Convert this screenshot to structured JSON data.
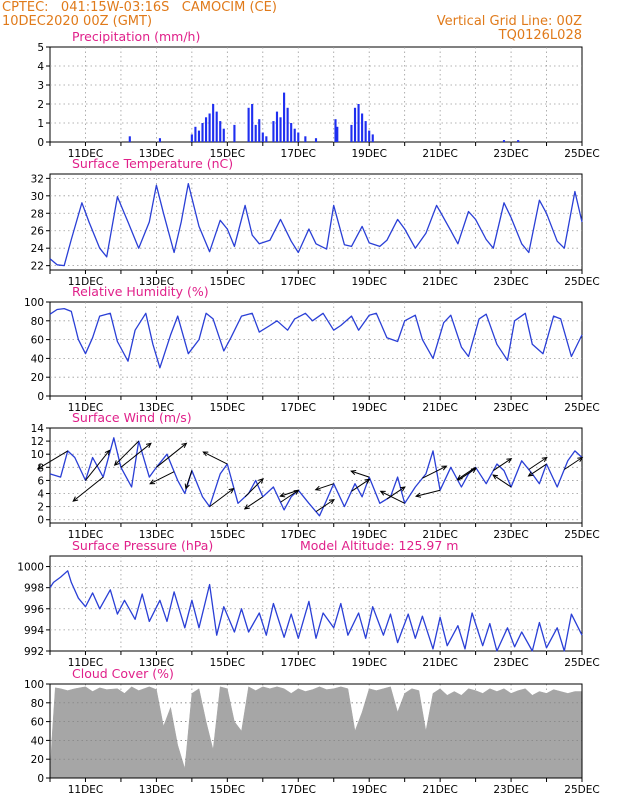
{
  "header": {
    "line1": "CPTEC:   041:15W-03:16S   CAMOCIM (CE)",
    "line2": "10DEC2020 00Z (GMT)",
    "right1": "Vertical Grid Line: 00Z",
    "right2": "TQ0126L028"
  },
  "colors": {
    "header": "#e07a1a",
    "title": "#e0208a",
    "line": "#2a3fd6",
    "bar": "#1f2ff0",
    "cloud": "#a6a6a6"
  },
  "chart_data": [
    {
      "id": "precip",
      "type": "bar",
      "title": "Precipitation (mm/h)",
      "ylim": [
        0,
        5
      ],
      "yticks": [
        0,
        1,
        2,
        3,
        4,
        5
      ],
      "xlim": [
        10,
        25
      ],
      "xticks": [
        11,
        13,
        15,
        17,
        19,
        21,
        23,
        25
      ],
      "xticklabels": [
        "11DEC",
        "13DEC",
        "15DEC",
        "17DEC",
        "19DEC",
        "21DEC",
        "23DEC",
        "25DEC"
      ],
      "x": [
        12.25,
        13.1,
        14.0,
        14.1,
        14.2,
        14.3,
        14.4,
        14.5,
        14.6,
        14.7,
        14.8,
        14.9,
        15.2,
        15.6,
        15.7,
        15.8,
        15.9,
        16.0,
        16.1,
        16.3,
        16.4,
        16.5,
        16.6,
        16.7,
        16.8,
        16.9,
        17.0,
        17.2,
        17.5,
        18.05,
        18.1,
        18.5,
        18.6,
        18.7,
        18.8,
        18.9,
        19.0,
        19.1,
        22.8,
        23.2
      ],
      "values": [
        0.3,
        0.2,
        0.4,
        0.8,
        0.6,
        1.0,
        1.3,
        1.5,
        2.0,
        1.6,
        1.1,
        0.7,
        0.9,
        1.8,
        2.0,
        0.9,
        1.2,
        0.5,
        0.3,
        1.1,
        1.6,
        1.3,
        2.6,
        1.8,
        1.0,
        0.7,
        0.5,
        0.3,
        0.2,
        1.2,
        0.8,
        0.9,
        1.8,
        2.0,
        1.5,
        1.1,
        0.6,
        0.4,
        0.1,
        0.1
      ]
    },
    {
      "id": "temp",
      "type": "line",
      "title": "Surface Temperature (nC)",
      "ylim": [
        21.5,
        32.5
      ],
      "yticks": [
        22,
        24,
        26,
        28,
        30,
        32
      ],
      "xlim": [
        10,
        25
      ],
      "xticks": [
        11,
        13,
        15,
        17,
        19,
        21,
        23,
        25
      ],
      "xticklabels": [
        "11DEC",
        "13DEC",
        "15DEC",
        "17DEC",
        "19DEC",
        "21DEC",
        "23DEC",
        "25DEC"
      ],
      "x": [
        10.0,
        10.2,
        10.4,
        10.6,
        10.9,
        11.1,
        11.4,
        11.6,
        11.9,
        12.2,
        12.5,
        12.8,
        13.0,
        13.2,
        13.5,
        13.7,
        13.9,
        14.2,
        14.5,
        14.8,
        15.0,
        15.2,
        15.5,
        15.7,
        15.9,
        16.2,
        16.5,
        16.8,
        17.0,
        17.3,
        17.5,
        17.8,
        18.0,
        18.3,
        18.5,
        18.8,
        19.0,
        19.3,
        19.5,
        19.8,
        20.0,
        20.3,
        20.6,
        20.9,
        21.0,
        21.3,
        21.5,
        21.8,
        22.0,
        22.3,
        22.5,
        22.8,
        23.0,
        23.3,
        23.5,
        23.8,
        24.0,
        24.3,
        24.5,
        24.8,
        25.0
      ],
      "y": [
        22.8,
        22.1,
        22.0,
        25.0,
        29.2,
        27.0,
        24.0,
        23.0,
        29.9,
        27.0,
        24.0,
        27.0,
        31.2,
        28.0,
        23.5,
        27.0,
        31.4,
        26.5,
        23.6,
        27.2,
        26.2,
        24.2,
        28.9,
        25.5,
        24.5,
        24.9,
        27.3,
        24.8,
        23.5,
        26.2,
        24.5,
        23.9,
        28.9,
        24.4,
        24.2,
        26.5,
        24.6,
        24.2,
        24.9,
        27.3,
        26.2,
        24.0,
        25.7,
        28.9,
        28.2,
        26.0,
        24.5,
        28.2,
        27.3,
        25.0,
        24.0,
        29.2,
        27.5,
        24.5,
        23.5,
        29.5,
        28.0,
        24.8,
        24.0,
        30.5,
        27.0
      ]
    },
    {
      "id": "rh",
      "type": "line",
      "title": "Relative Humidity (%)",
      "ylim": [
        0,
        100
      ],
      "yticks": [
        0,
        20,
        40,
        60,
        80,
        100
      ],
      "xlim": [
        10,
        25
      ],
      "xticks": [
        11,
        13,
        15,
        17,
        19,
        21,
        23,
        25
      ],
      "xticklabels": [
        "11DEC",
        "13DEC",
        "15DEC",
        "17DEC",
        "19DEC",
        "21DEC",
        "23DEC",
        "25DEC"
      ],
      "x": [
        10.0,
        10.2,
        10.4,
        10.6,
        10.8,
        11.0,
        11.2,
        11.4,
        11.7,
        11.9,
        12.2,
        12.4,
        12.7,
        12.9,
        13.1,
        13.4,
        13.6,
        13.9,
        14.2,
        14.4,
        14.6,
        14.9,
        15.1,
        15.4,
        15.7,
        15.9,
        16.2,
        16.4,
        16.7,
        16.9,
        17.2,
        17.4,
        17.7,
        18.0,
        18.2,
        18.5,
        18.7,
        19.0,
        19.2,
        19.5,
        19.8,
        20.0,
        20.3,
        20.5,
        20.8,
        21.1,
        21.3,
        21.6,
        21.8,
        22.1,
        22.3,
        22.6,
        22.9,
        23.1,
        23.4,
        23.6,
        23.9,
        24.2,
        24.4,
        24.7,
        25.0
      ],
      "y": [
        87,
        92,
        93,
        90,
        60,
        45,
        62,
        85,
        88,
        58,
        37,
        70,
        88,
        55,
        30,
        65,
        85,
        45,
        60,
        88,
        82,
        48,
        62,
        85,
        88,
        68,
        75,
        80,
        70,
        82,
        88,
        80,
        88,
        70,
        75,
        85,
        70,
        86,
        88,
        62,
        58,
        80,
        86,
        60,
        40,
        78,
        86,
        52,
        42,
        82,
        87,
        55,
        38,
        80,
        88,
        55,
        45,
        85,
        82,
        42,
        65
      ]
    },
    {
      "id": "wind",
      "type": "line",
      "title": "Surface Wind (m/s)",
      "ylim": [
        -0.5,
        14
      ],
      "yticks": [
        0,
        2,
        4,
        6,
        8,
        10,
        12,
        14
      ],
      "xlim": [
        10,
        25
      ],
      "xticks": [
        11,
        13,
        15,
        17,
        19,
        21,
        23,
        25
      ],
      "xticklabels": [
        "11DEC",
        "13DEC",
        "15DEC",
        "17DEC",
        "19DEC",
        "21DEC",
        "23DEC",
        "25DEC"
      ],
      "x": [
        10.0,
        10.3,
        10.5,
        10.7,
        11.0,
        11.2,
        11.5,
        11.8,
        12.0,
        12.3,
        12.5,
        12.8,
        13.0,
        13.3,
        13.6,
        13.8,
        14.0,
        14.3,
        14.5,
        14.8,
        15.0,
        15.3,
        15.6,
        15.8,
        16.0,
        16.3,
        16.6,
        16.8,
        17.0,
        17.3,
        17.6,
        17.8,
        18.0,
        18.3,
        18.6,
        18.8,
        19.0,
        19.3,
        19.6,
        19.8,
        20.0,
        20.3,
        20.6,
        20.8,
        21.0,
        21.3,
        21.6,
        21.8,
        22.0,
        22.3,
        22.6,
        22.8,
        23.0,
        23.3,
        23.6,
        23.8,
        24.0,
        24.3,
        24.6,
        24.8,
        25.0
      ],
      "y": [
        7,
        6.5,
        10.5,
        9.5,
        6,
        9.5,
        6.5,
        12.5,
        8,
        5,
        12,
        6.5,
        8,
        10,
        6,
        4,
        7.5,
        3.5,
        2,
        7,
        8.5,
        2.5,
        4,
        6,
        3.5,
        5,
        1.5,
        3.5,
        4.5,
        2.5,
        0.6,
        3,
        5.5,
        2,
        5.5,
        3.5,
        6.5,
        2.5,
        3.5,
        6.5,
        2.5,
        5,
        7,
        10.5,
        4.5,
        8,
        5,
        7,
        8,
        5.5,
        8.5,
        7.5,
        5,
        9,
        7,
        5.5,
        8.5,
        5,
        9,
        10.5,
        9.5
      ],
      "vectors": {
        "x": [
          10.5,
          11.0,
          11.5,
          12.0,
          12.5,
          13.0,
          13.5,
          14.0,
          14.5,
          15.0,
          15.5,
          16.0,
          16.5,
          17.0,
          17.5,
          18.0,
          18.5,
          19.0,
          19.5,
          20.0,
          20.5,
          21.0,
          21.5,
          22.0,
          22.5,
          23.0,
          23.5,
          24.0,
          24.5
        ],
        "u": [
          -5,
          4,
          -5,
          5,
          -4,
          5,
          -4,
          -1,
          4,
          -4,
          3,
          -3,
          3,
          -3,
          3,
          -3,
          3,
          -3,
          3,
          -4,
          4,
          -4,
          3,
          -3,
          3,
          -3,
          3,
          -3,
          3
        ],
        "v": [
          -3,
          5,
          -4,
          4,
          -4,
          4,
          -2,
          -3,
          3,
          2,
          3,
          -2,
          2,
          -1,
          2,
          -1,
          2,
          1,
          2,
          2,
          2,
          -1,
          2,
          -2,
          2,
          2,
          2,
          -2,
          2
        ]
      }
    },
    {
      "id": "pres",
      "type": "line",
      "title": "Surface Pressure (hPa)",
      "annotation": "Model Altitude: 125.97 m",
      "ylim": [
        992,
        1001
      ],
      "yticks": [
        992,
        994,
        996,
        998,
        1000
      ],
      "xlim": [
        10,
        25
      ],
      "xticks": [
        11,
        13,
        15,
        17,
        19,
        21,
        23,
        25
      ],
      "xticklabels": [
        "11DEC",
        "13DEC",
        "15DEC",
        "17DEC",
        "19DEC",
        "21DEC",
        "23DEC",
        "25DEC"
      ],
      "x": [
        10.0,
        10.1,
        10.3,
        10.5,
        10.6,
        10.8,
        11.0,
        11.2,
        11.4,
        11.7,
        11.9,
        12.1,
        12.4,
        12.6,
        12.8,
        13.1,
        13.3,
        13.5,
        13.8,
        14.0,
        14.2,
        14.5,
        14.7,
        14.9,
        15.2,
        15.4,
        15.6,
        15.9,
        16.1,
        16.3,
        16.6,
        16.8,
        17.0,
        17.3,
        17.5,
        17.7,
        18.0,
        18.2,
        18.4,
        18.7,
        18.9,
        19.1,
        19.4,
        19.6,
        19.8,
        20.1,
        20.3,
        20.5,
        20.8,
        21.0,
        21.2,
        21.5,
        21.7,
        21.9,
        22.2,
        22.4,
        22.6,
        22.9,
        23.1,
        23.3,
        23.6,
        23.8,
        24.0,
        24.3,
        24.5,
        24.7,
        25.0
      ],
      "y": [
        998,
        998.5,
        999,
        999.6,
        998.5,
        997,
        996.2,
        997.5,
        996,
        997.8,
        995.5,
        996.8,
        995,
        997.4,
        994.8,
        996.8,
        994.8,
        997.6,
        994.2,
        996.8,
        994.2,
        998.3,
        993.5,
        996.2,
        993.8,
        996,
        993.8,
        995.6,
        993.5,
        996.5,
        993.3,
        995.5,
        993.2,
        996.7,
        993.2,
        995.6,
        994.2,
        996.5,
        993.5,
        995.6,
        993.2,
        996.2,
        993.5,
        995.5,
        992.8,
        995.5,
        993.2,
        995.3,
        992.2,
        995.2,
        992.5,
        994.4,
        992.2,
        995.6,
        992.5,
        994.6,
        992.0,
        994.2,
        992.4,
        993.8,
        991.8,
        994.7,
        992.3,
        994.2,
        991.9,
        995.5,
        993.5
      ]
    },
    {
      "id": "cloud",
      "type": "area",
      "title": "Cloud Cover (%)",
      "ylim": [
        0,
        100
      ],
      "yticks": [
        0,
        20,
        40,
        60,
        80,
        100
      ],
      "xlim": [
        10,
        25
      ],
      "xticks": [
        11,
        13,
        15,
        17,
        19,
        21,
        23,
        25
      ],
      "xticklabels": [
        "11DEC",
        "13DEC",
        "15DEC",
        "17DEC",
        "19DEC",
        "21DEC",
        "23DEC",
        "25DEC"
      ],
      "x": [
        10.0,
        10.05,
        10.15,
        10.3,
        10.5,
        10.7,
        11.0,
        11.2,
        11.4,
        11.6,
        11.9,
        12.1,
        12.3,
        12.5,
        12.8,
        13.0,
        13.2,
        13.4,
        13.6,
        13.8,
        14.0,
        14.2,
        14.4,
        14.6,
        14.8,
        15.0,
        15.2,
        15.4,
        15.6,
        15.8,
        16.0,
        16.2,
        16.4,
        16.6,
        16.8,
        17.0,
        17.2,
        17.4,
        17.6,
        17.8,
        18.0,
        18.2,
        18.4,
        18.6,
        18.8,
        19.0,
        19.2,
        19.4,
        19.6,
        19.8,
        20.0,
        20.2,
        20.4,
        20.6,
        20.8,
        21.0,
        21.2,
        21.4,
        21.6,
        21.8,
        22.0,
        22.2,
        22.4,
        22.6,
        22.8,
        23.0,
        23.2,
        23.4,
        23.6,
        23.8,
        24.0,
        24.2,
        24.4,
        24.6,
        24.8,
        25.0
      ],
      "y": [
        0,
        40,
        96,
        95,
        93,
        95,
        97,
        92,
        96,
        94,
        95,
        90,
        97,
        93,
        97,
        94,
        55,
        75,
        35,
        10,
        90,
        95,
        60,
        30,
        97,
        95,
        60,
        50,
        97,
        93,
        97,
        95,
        97,
        95,
        90,
        95,
        92,
        94,
        97,
        94,
        95,
        97,
        95,
        50,
        70,
        95,
        93,
        95,
        97,
        70,
        90,
        95,
        93,
        50,
        90,
        95,
        88,
        92,
        88,
        95,
        93,
        90,
        95,
        92,
        95,
        90,
        93,
        95,
        88,
        92,
        90,
        94,
        92,
        90,
        92,
        92
      ]
    }
  ]
}
